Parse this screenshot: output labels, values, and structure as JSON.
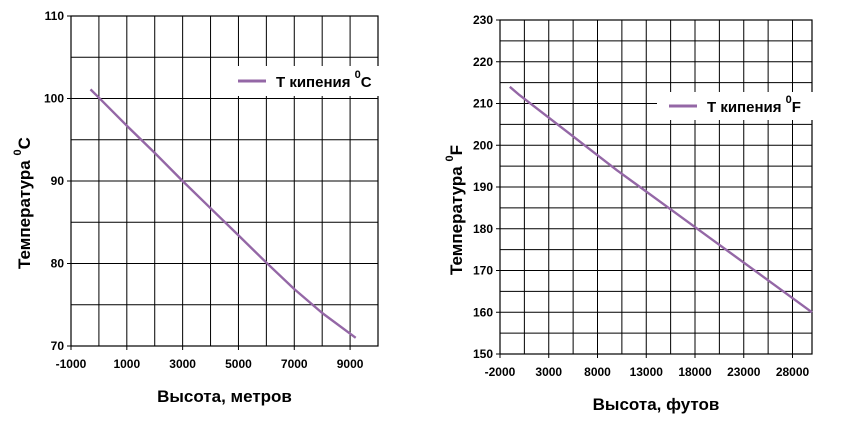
{
  "chart_data": [
    {
      "type": "line",
      "xlabel": "Высота, метров",
      "ylabel": "Температура",
      "ylabel_sup": "0",
      "ylabel_unit": "C",
      "xlim": [
        -1000,
        10000
      ],
      "ylim": [
        70,
        110
      ],
      "x_ticks": [
        -1000,
        1000,
        3000,
        5000,
        7000,
        9000
      ],
      "x_tick_labels": [
        "-1000",
        "1000",
        "3000",
        "5000",
        "7000",
        "9000"
      ],
      "y_ticks": [
        70,
        80,
        90,
        100,
        110
      ],
      "y_tick_labels": [
        "70",
        "80",
        "90",
        "100",
        "110"
      ],
      "grid": true,
      "legend_position": "top-right",
      "series": [
        {
          "name": "Т кипения",
          "name_sup": "0",
          "name_unit": "C",
          "color": "#9467a6",
          "x": [
            -300,
            0,
            1000,
            2000,
            3000,
            4000,
            5000,
            6000,
            7000,
            8000,
            9200
          ],
          "y": [
            101.1,
            100.1,
            96.7,
            93.4,
            90.0,
            86.7,
            83.4,
            80.1,
            76.9,
            74.0,
            71.0
          ]
        }
      ]
    },
    {
      "type": "line",
      "xlabel": "Высота, футов",
      "ylabel": "Температура",
      "ylabel_sup": "0",
      "ylabel_unit": "F",
      "xlim": [
        -2000,
        30000
      ],
      "ylim": [
        150,
        230
      ],
      "x_ticks": [
        -2000,
        3000,
        8000,
        13000,
        18000,
        23000,
        28000
      ],
      "x_tick_labels": [
        "-2000",
        "3000",
        "8000",
        "13000",
        "18000",
        "23000",
        "28000"
      ],
      "y_ticks": [
        150,
        160,
        170,
        180,
        190,
        200,
        210,
        220,
        230
      ],
      "y_tick_labels": [
        "150",
        "160",
        "170",
        "180",
        "190",
        "200",
        "210",
        "220",
        "230"
      ],
      "grid": true,
      "legend_position": "top-right",
      "series": [
        {
          "name": "Т кипения",
          "name_sup": "0",
          "name_unit": "F",
          "color": "#9467a6",
          "x": [
            -1000,
            0,
            5000,
            10000,
            15000,
            20000,
            25000,
            30000
          ],
          "y": [
            214.0,
            212.0,
            203.0,
            194.0,
            185.5,
            177.0,
            168.5,
            160.0
          ]
        }
      ]
    }
  ]
}
